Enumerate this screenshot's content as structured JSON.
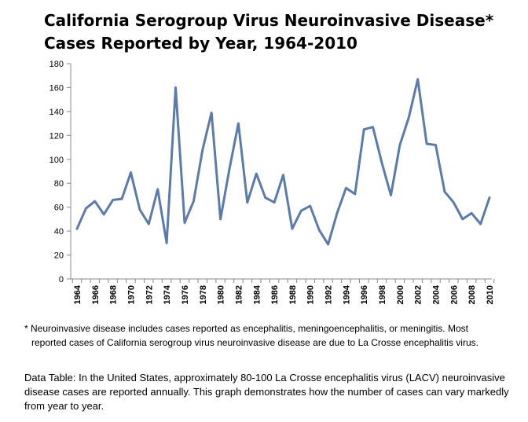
{
  "title_line1": "California Serogroup Virus Neuroinvasive Disease*",
  "title_line2": "Cases Reported by Year, 1964-2010",
  "footnote_line1": "* Neuroinvasive disease includes cases reported as encephalitis, meningoencephalitis, or meningitis. Most",
  "footnote_line2": "reported cases of California serogroup virus neuroinvasive disease are due to La Crosse encephalitis virus.",
  "data_table_text": "Data Table: In the United States, approximately 80-100 La Crosse encephalitis virus (LACV) neuroinvasive disease cases are reported annually. This graph demonstrates how the number of cases can vary markedly from year to year.",
  "colors": {
    "line": "#5a7bab",
    "axis": "#888888"
  },
  "chart_data": {
    "type": "line",
    "title": "California Serogroup Virus Neuroinvasive Disease* Cases Reported by Year, 1964-2010",
    "xlabel": "",
    "ylabel": "",
    "ylim": [
      0,
      180
    ],
    "yticks": [
      0,
      20,
      40,
      60,
      80,
      100,
      120,
      140,
      160,
      180
    ],
    "xlim": [
      1964,
      2010
    ],
    "xtick_labels": [
      "1964",
      "1966",
      "1968",
      "1970",
      "1972",
      "1974",
      "1976",
      "1978",
      "1980",
      "1982",
      "1984",
      "1986",
      "1988",
      "1990",
      "1992",
      "1994",
      "1996",
      "1998",
      "2000",
      "2002",
      "2004",
      "2006",
      "2008",
      "2010"
    ],
    "grid": false,
    "x": [
      1964,
      1965,
      1966,
      1967,
      1968,
      1969,
      1970,
      1971,
      1972,
      1973,
      1974,
      1975,
      1976,
      1977,
      1978,
      1979,
      1980,
      1981,
      1982,
      1983,
      1984,
      1985,
      1986,
      1987,
      1988,
      1989,
      1990,
      1991,
      1992,
      1993,
      1994,
      1995,
      1996,
      1997,
      1998,
      1999,
      2000,
      2001,
      2002,
      2003,
      2004,
      2005,
      2006,
      2007,
      2008,
      2009,
      2010
    ],
    "y": [
      42,
      59,
      65,
      54,
      66,
      67,
      89,
      58,
      46,
      75,
      30,
      160,
      47,
      65,
      108,
      139,
      50,
      92,
      130,
      64,
      88,
      68,
      64,
      87,
      42,
      57,
      61,
      41,
      29,
      55,
      76,
      71,
      125,
      127,
      97,
      70,
      112,
      135,
      167,
      113,
      112,
      73,
      64,
      50,
      55,
      46,
      68
    ]
  }
}
